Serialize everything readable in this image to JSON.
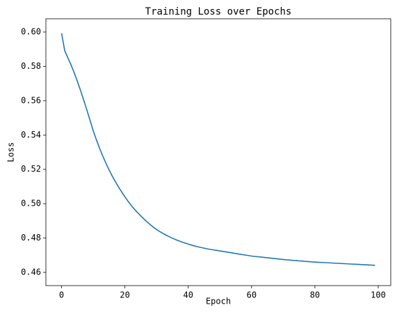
{
  "chart_data": {
    "type": "line",
    "title": "Training Loss over Epochs",
    "xlabel": "Epoch",
    "ylabel": "Loss",
    "color": "#1f77b4",
    "x": [
      0,
      1,
      2,
      3,
      4,
      5,
      6,
      7,
      8,
      9,
      10,
      11,
      12,
      13,
      14,
      15,
      16,
      17,
      18,
      19,
      20,
      21,
      22,
      23,
      24,
      25,
      26,
      27,
      28,
      29,
      30,
      31,
      32,
      33,
      34,
      35,
      36,
      37,
      38,
      39,
      40,
      41,
      42,
      43,
      44,
      45,
      46,
      47,
      48,
      49,
      50,
      51,
      52,
      53,
      54,
      55,
      56,
      57,
      58,
      59,
      60,
      61,
      62,
      63,
      64,
      65,
      66,
      67,
      68,
      69,
      70,
      71,
      72,
      73,
      74,
      75,
      76,
      77,
      78,
      79,
      80,
      81,
      82,
      83,
      84,
      85,
      86,
      87,
      88,
      89,
      90,
      91,
      92,
      93,
      94,
      95,
      96,
      97,
      98,
      99
    ],
    "values": [
      0.5993,
      0.5891,
      0.5849,
      0.5808,
      0.5762,
      0.5712,
      0.5659,
      0.5603,
      0.5545,
      0.5485,
      0.5425,
      0.5372,
      0.5323,
      0.5278,
      0.5236,
      0.5197,
      0.5161,
      0.5128,
      0.5097,
      0.5068,
      0.504,
      0.5014,
      0.499,
      0.4968,
      0.4948,
      0.4929,
      0.4911,
      0.4894,
      0.4878,
      0.4863,
      0.485,
      0.4838,
      0.4827,
      0.4817,
      0.4808,
      0.4799,
      0.4791,
      0.4784,
      0.4777,
      0.4771,
      0.4765,
      0.4759,
      0.4754,
      0.4749,
      0.4745,
      0.4741,
      0.4737,
      0.4734,
      0.4731,
      0.4728,
      0.4725,
      0.4722,
      0.4719,
      0.4716,
      0.4713,
      0.471,
      0.4707,
      0.4704,
      0.4701,
      0.4698,
      0.4695,
      0.4693,
      0.4691,
      0.4689,
      0.4687,
      0.4685,
      0.4683,
      0.4681,
      0.4679,
      0.4677,
      0.4675,
      0.4673,
      0.4672,
      0.467,
      0.4669,
      0.4667,
      0.4666,
      0.4664,
      0.4663,
      0.4661,
      0.466,
      0.4659,
      0.4658,
      0.4657,
      0.4656,
      0.4655,
      0.4654,
      0.4653,
      0.4652,
      0.4651,
      0.465,
      0.4649,
      0.4648,
      0.4647,
      0.4646,
      0.4645,
      0.4644,
      0.4643,
      0.4642,
      0.4641
    ],
    "xlim": [
      -4.95,
      103.95
    ],
    "xticks": [
      0,
      20,
      40,
      60,
      80,
      100
    ],
    "ylim": [
      0.4523,
      0.6077
    ],
    "yticks": [
      0.46,
      0.48,
      {
        "value": 0.5,
        "label": "0.50"
      },
      0.52,
      0.54,
      0.56,
      0.58,
      {
        "value": 0.6,
        "label": "0.60"
      }
    ]
  }
}
